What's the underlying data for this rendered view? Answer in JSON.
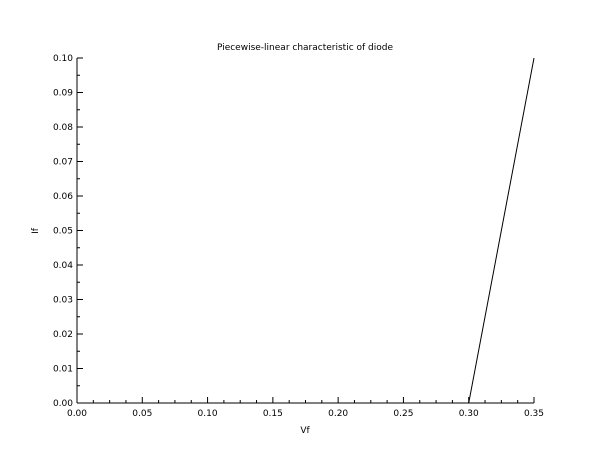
{
  "chart_data": {
    "type": "line",
    "title": "Piecewise-linear characteristic of diode",
    "xlabel": "Vf",
    "ylabel": "If",
    "xlim": [
      0,
      0.35
    ],
    "ylim": [
      0,
      0.1
    ],
    "x_ticks": [
      "0.00",
      "0.05",
      "0.10",
      "0.15",
      "0.20",
      "0.25",
      "0.30",
      "0.35"
    ],
    "y_ticks": [
      "0.00",
      "0.01",
      "0.02",
      "0.03",
      "0.04",
      "0.05",
      "0.06",
      "0.07",
      "0.08",
      "0.09",
      "0.10"
    ],
    "grid": false,
    "series": [
      {
        "x": [
          0.0,
          0.3,
          0.35
        ],
        "y": [
          0.0,
          0.0,
          0.1
        ],
        "color": "#000000"
      }
    ]
  }
}
